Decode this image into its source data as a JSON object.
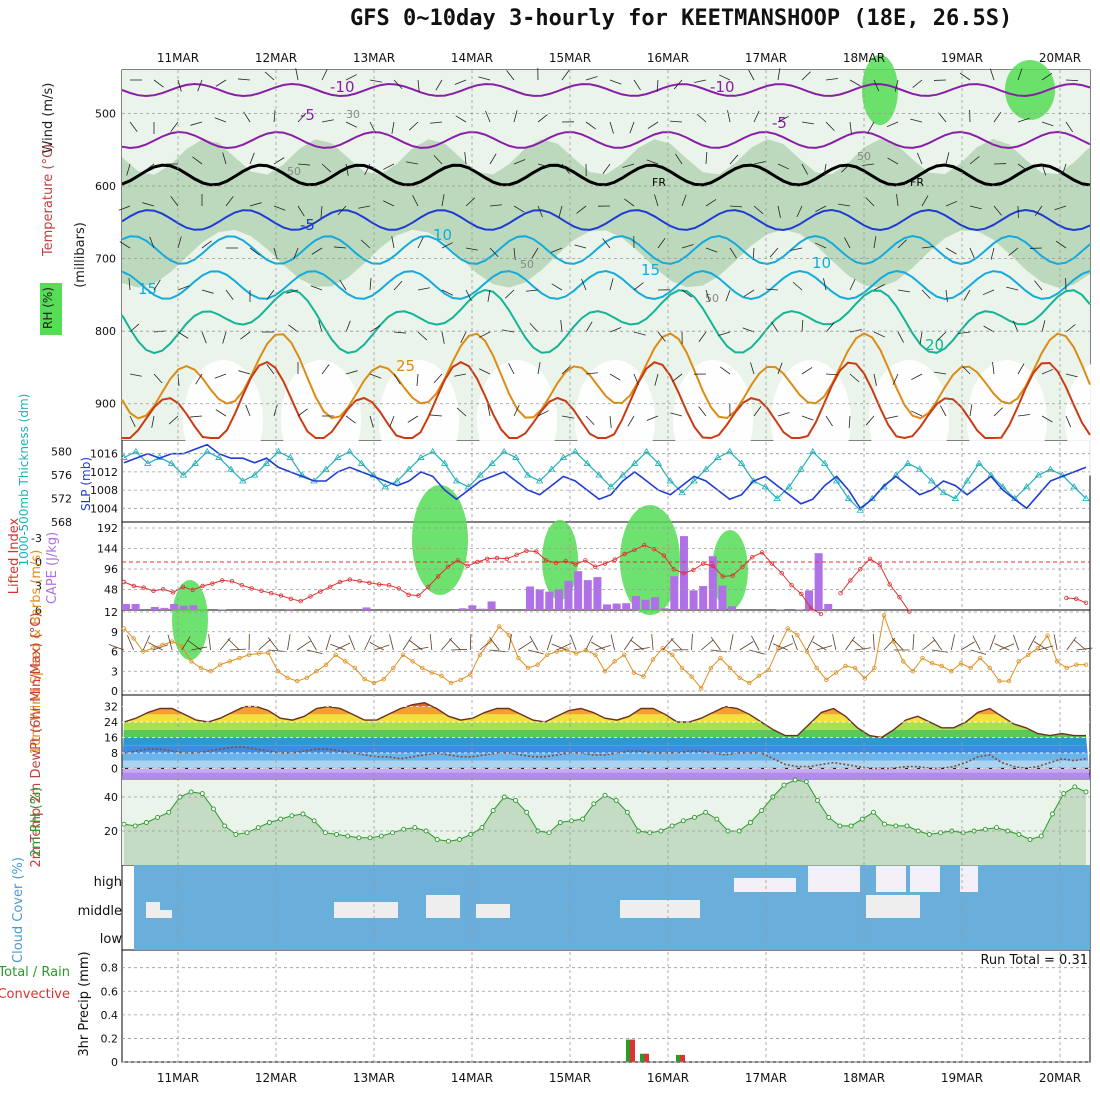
{
  "title": "GFS 0~10day 3-hourly for KEETMANSHOOP (18E, 26.5S)",
  "dates": [
    "11MAR",
    "12MAR",
    "13MAR",
    "14MAR",
    "15MAR",
    "16MAR",
    "17MAR",
    "18MAR",
    "19MAR",
    "20MAR"
  ],
  "colors": {
    "rh": "#55dd55",
    "temp_cold": "#8a1ea8",
    "temp_blue": "#1e3cd2",
    "temp_cyan": "#14aadc",
    "temp_teal": "#14b496",
    "temp_orange": "#dc8c14",
    "temp_red": "#c83c14",
    "cloud": "#6aaedb",
    "thickness": "#20b0b8",
    "slp": "#1e3cd2",
    "lifted": "#e03030",
    "cape": "#b070e8",
    "wind": "#e09020",
    "rh2m": "#2a9a2a"
  },
  "chart_data": [
    {
      "type": "heatmap",
      "name": "upper_air",
      "axis_title_temperature": "Temperature (°C)",
      "axis_title_wind": "Wind (m/s)",
      "axis_title_rh": "RH (%)",
      "axis_title_pressure": "(millibars)",
      "y_ticks": [
        500,
        600,
        700,
        800,
        900
      ],
      "ylim": [
        440,
        950
      ],
      "contour_labels": [
        "-10",
        "-10",
        "-5",
        "-5",
        "FR",
        "FR",
        "-5",
        "10",
        "10",
        "15",
        "15",
        "20",
        "25",
        "30",
        "50",
        "50",
        "50",
        "50"
      ]
    },
    {
      "type": "line",
      "name": "thickness_slp",
      "axis_title_left": "1000-500mb Thickness (dm)",
      "axis_title_right": "SLP (mb)",
      "thickness_ticks": [
        568,
        572,
        576,
        580
      ],
      "slp_ticks": [
        1004,
        1008,
        1012,
        1016
      ],
      "thickness_lim": [
        568,
        582
      ],
      "slp_lim": [
        1001,
        1019
      ],
      "thickness": [
        579,
        580,
        578,
        579,
        578,
        576,
        578,
        580,
        579,
        577,
        575,
        576,
        578,
        580,
        579,
        576,
        575,
        577,
        579,
        580,
        578,
        576,
        574,
        575,
        577,
        579,
        580,
        578,
        575,
        574,
        576,
        578,
        580,
        579,
        576,
        575,
        577,
        579,
        580,
        578,
        576,
        574,
        576,
        578,
        580,
        578,
        575,
        573,
        575,
        577,
        579,
        580,
        578,
        575,
        574,
        572,
        574,
        577,
        580,
        578,
        575,
        572,
        570,
        572,
        574,
        576,
        578,
        577,
        575,
        573,
        572,
        575,
        578,
        576,
        574,
        572,
        574,
        576,
        577,
        576,
        574,
        572
      ],
      "slp": [
        1014,
        1015,
        1016,
        1015,
        1016,
        1016,
        1017,
        1018,
        1016,
        1015,
        1015,
        1014,
        1015,
        1013,
        1012,
        1011,
        1010,
        1010,
        1012,
        1013,
        1012,
        1011,
        1010,
        1009,
        1010,
        1012,
        1011,
        1008,
        1006,
        1008,
        1010,
        1011,
        1012,
        1010,
        1008,
        1007,
        1009,
        1011,
        1010,
        1008,
        1006,
        1007,
        1010,
        1012,
        1010,
        1008,
        1007,
        1009,
        1011,
        1010,
        1008,
        1006,
        1007,
        1010,
        1011,
        1009,
        1007,
        1005,
        1006,
        1009,
        1011,
        1008,
        1004,
        1006,
        1009,
        1011,
        1009,
        1007,
        1008,
        1010,
        1009,
        1007,
        1009,
        1011,
        1008,
        1006,
        1004,
        1007,
        1010,
        1011,
        1012,
        1013
      ]
    },
    {
      "type": "bar",
      "name": "cape_li",
      "axis_title_left": "Lifted Index",
      "axis_title_right": "CAPE (J/kg)",
      "li_ticks": [
        "6",
        "3",
        "0",
        "-3"
      ],
      "li_lim": [
        6,
        -5
      ],
      "cape_ticks": [
        48,
        96,
        144,
        192
      ],
      "cape_lim": [
        0,
        192
      ],
      "lifted_index": [
        2.5,
        3,
        3.2,
        3.6,
        3.4,
        3.8,
        3.1,
        3.5,
        3.0,
        2.7,
        2.3,
        2.4,
        2.9,
        3.3,
        3.6,
        3.9,
        4.2,
        4.6,
        4.9,
        4.3,
        3.7,
        3.1,
        2.5,
        2.2,
        2.4,
        2.6,
        2.8,
        2.9,
        3.3,
        4.1,
        4.2,
        3.1,
        1.8,
        0.6,
        -0.2,
        0.5,
        0.0,
        -0.4,
        -0.5,
        -0.4,
        -0.9,
        -1.4,
        -1.3,
        -0.2,
        0.1,
        -0.1,
        0.3,
        -0.2,
        0.6,
        0.2,
        -0.3,
        -1.0,
        -1.5,
        -2.1,
        -1.6,
        -0.8,
        0.9,
        1.4,
        1.0,
        0.2,
        0.5,
        1.8,
        1.7,
        0.6,
        -0.6,
        -1.2,
        0.2,
        1.4,
        2.9,
        4.0,
        5.8,
        6.5,
        6.8,
        3.9,
        2.3,
        0.9,
        -0.4,
        0.4,
        2.8,
        4.4,
        6.2,
        6.7,
        6.9,
        6.9,
        6.9,
        6.9,
        6.9,
        6.9,
        6.9,
        6.9,
        6.9,
        6.9,
        6.9,
        6.9,
        6.9,
        6.9,
        4.5,
        4.6,
        5.1
      ],
      "cape": [
        14,
        14,
        0,
        7,
        5,
        14,
        10,
        11,
        0,
        0,
        1,
        0,
        0,
        0,
        0,
        0,
        0,
        2,
        0,
        0,
        0,
        0,
        0,
        0,
        0,
        6,
        0,
        0,
        0,
        0,
        0,
        0,
        0,
        0,
        0,
        4,
        11,
        3,
        20,
        0,
        0,
        0,
        55,
        48,
        43,
        48,
        68,
        91,
        70,
        77,
        13,
        15,
        16,
        33,
        24,
        30,
        4,
        79,
        173,
        46,
        56,
        126,
        57,
        9,
        0,
        0,
        0,
        0,
        1,
        0,
        1,
        46,
        133,
        14,
        0,
        0,
        0,
        1,
        0,
        0,
        0,
        0,
        0,
        0,
        0
      ]
    },
    {
      "type": "line",
      "name": "wind10m",
      "axis_title": "10m Wind Speed & Barbs (m/s)",
      "y_ticks": [
        0,
        3,
        6,
        9,
        12
      ],
      "ylim": [
        0,
        12
      ],
      "speed": [
        9.5,
        8,
        6,
        6.5,
        7,
        7.5,
        6.8,
        4.5,
        3.5,
        3,
        4,
        4.5,
        5,
        5.5,
        5.7,
        5.8,
        3,
        2,
        1.5,
        2,
        3,
        4,
        5.5,
        4.5,
        3.5,
        1.8,
        1.2,
        1.8,
        3.5,
        5.5,
        4.5,
        3.5,
        2.8,
        2.3,
        1.2,
        1.7,
        2.5,
        5.5,
        7.5,
        9.8,
        8.5,
        5,
        3.5,
        4,
        5.5,
        6,
        6.3,
        5.7,
        6.2,
        5.5,
        3,
        4.5,
        5.5,
        2.8,
        2.2,
        4.8,
        6.5,
        5.5,
        3.5,
        2.2,
        0.4,
        3.5,
        5,
        3.5,
        2,
        1.2,
        2.3,
        3.2,
        6.5,
        9.5,
        8.5,
        6,
        3.5,
        1.7,
        2.8,
        3.8,
        3.5,
        1.9,
        3.5,
        11.5,
        7.5,
        4.5,
        3,
        5,
        4.2,
        3.8,
        3,
        4.2,
        3.5,
        5,
        3.5,
        1.5,
        1.5,
        4.5,
        5.5,
        6.5,
        8.4,
        4.5,
        3.5,
        4,
        4
      ]
    },
    {
      "type": "area",
      "name": "temp2m",
      "axis_title": "2m Temp 2m DewPt (6hr Min/Max) (°C)",
      "y_ticks": [
        0,
        8,
        16,
        24,
        32
      ],
      "ylim": [
        -6,
        38
      ],
      "temperature": [
        24,
        26,
        29,
        31,
        31,
        28,
        25,
        24,
        26,
        29,
        32,
        32,
        30,
        26,
        25,
        27,
        31,
        32,
        31,
        28,
        25,
        25,
        28,
        31,
        33,
        34,
        31,
        27,
        25,
        26,
        29,
        31,
        31,
        28,
        25,
        24,
        27,
        30,
        31,
        29,
        26,
        25,
        27,
        31,
        31,
        28,
        24,
        24,
        26,
        29,
        32,
        31,
        28,
        24,
        20,
        17,
        17,
        23,
        29,
        31,
        27,
        21,
        17,
        16,
        20,
        25,
        27,
        24,
        21,
        21,
        24,
        29,
        31,
        27,
        23,
        21,
        18,
        17,
        18,
        17,
        17
      ],
      "dewpoint": [
        8,
        9,
        10,
        10,
        9,
        8,
        8,
        9,
        10,
        11,
        11,
        10,
        9,
        8,
        8,
        9,
        10,
        10,
        9,
        8,
        7,
        6,
        6,
        5,
        6,
        7,
        8,
        7,
        6,
        6,
        7,
        8,
        8,
        7,
        6,
        6,
        7,
        8,
        8,
        7,
        7,
        8,
        9,
        9,
        8,
        8,
        8,
        9,
        9,
        8,
        7,
        8,
        8,
        8,
        5,
        2,
        1,
        1,
        2,
        3,
        2,
        1,
        0,
        0,
        0,
        1,
        1,
        0,
        0,
        1,
        3,
        6,
        7,
        3,
        1,
        0,
        1,
        3,
        5,
        4,
        5
      ]
    },
    {
      "type": "area",
      "name": "rh2m",
      "axis_title": "2m RH (%)",
      "y_ticks": [
        20,
        40
      ],
      "ylim": [
        0,
        50
      ],
      "rh": [
        24,
        23,
        25,
        28,
        31,
        40,
        43,
        42,
        33,
        23,
        18,
        19,
        22,
        25,
        27,
        29,
        30,
        26,
        19,
        18,
        17,
        16,
        16,
        17,
        19,
        21,
        22,
        20,
        15,
        14,
        15,
        18,
        22,
        32,
        40,
        38,
        31,
        20,
        19,
        25,
        26,
        27,
        36,
        41,
        38,
        31,
        20,
        19,
        20,
        23,
        26,
        28,
        31,
        27,
        20,
        20,
        25,
        32,
        40,
        47,
        50,
        49,
        38,
        28,
        23,
        23,
        27,
        31,
        24,
        23,
        23,
        20,
        18,
        19,
        20,
        19,
        20,
        21,
        22,
        20,
        18,
        15,
        17,
        30,
        42,
        46,
        43
      ]
    },
    {
      "type": "heatmap",
      "name": "cloud_cover",
      "axis_title": "Cloud Cover (%)",
      "levels": [
        "high",
        "middle",
        "low"
      ],
      "run_total_label": "Run Total = 0.31"
    },
    {
      "type": "bar",
      "name": "precip3hr",
      "axis_title": "3hr Precip (mm)",
      "legend": [
        "Total / Rain",
        "Convective"
      ],
      "y_ticks": [
        "0",
        "0.2",
        "0.4",
        "0.6",
        "0.8"
      ],
      "ylim": [
        0,
        0.95
      ],
      "total": [
        {
          "x": "15MAR 15Z",
          "v": 0.19
        },
        {
          "x": "15MAR 18Z",
          "v": 0.07
        },
        {
          "x": "16MAR 06Z",
          "v": 0.06
        }
      ],
      "convective": [
        {
          "x": "15MAR 15Z",
          "v": 0.19
        },
        {
          "x": "15MAR 18Z",
          "v": 0.07
        },
        {
          "x": "16MAR 06Z",
          "v": 0.06
        }
      ]
    }
  ]
}
